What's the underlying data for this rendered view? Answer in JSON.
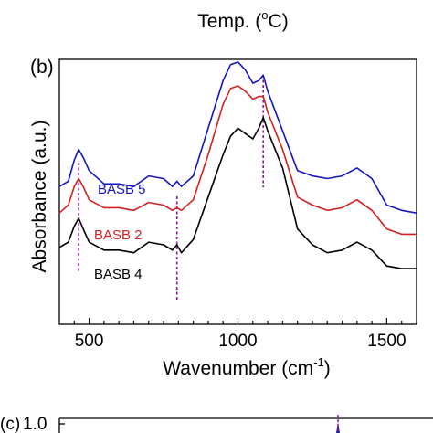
{
  "top_title": {
    "text": "Temp. (",
    "sup": "o",
    "tail": "C)"
  },
  "chart_data": {
    "type": "line",
    "panel_label": "(b)",
    "xlabel": {
      "text": "Wavenumber (cm",
      "sup": "-1",
      "tail": ")"
    },
    "ylabel": "Absorbance (a.u.)",
    "xlim": [
      400,
      1600
    ],
    "xticks": [
      500,
      1000,
      1500
    ],
    "y_ticks_labeled": false,
    "grid": false,
    "legend": "inline labels",
    "dashed_markers": [
      {
        "x": 465,
        "color": "#8b1a9a"
      },
      {
        "x": 795,
        "color": "#8b1a9a"
      },
      {
        "x": 1085,
        "color": "#8b1a9a"
      }
    ],
    "series": [
      {
        "name": "BASB 5",
        "color": "#1515c0",
        "x": [
          400,
          430,
          450,
          465,
          480,
          500,
          550,
          600,
          650,
          700,
          750,
          780,
          795,
          810,
          850,
          900,
          950,
          975,
          1000,
          1025,
          1050,
          1070,
          1085,
          1100,
          1150,
          1200,
          1250,
          1300,
          1350,
          1400,
          1450,
          1500,
          1550,
          1600
        ],
        "y": [
          0.52,
          0.54,
          0.62,
          0.66,
          0.63,
          0.58,
          0.53,
          0.53,
          0.52,
          0.56,
          0.55,
          0.52,
          0.54,
          0.52,
          0.56,
          0.74,
          0.92,
          0.98,
          0.99,
          0.96,
          0.91,
          0.92,
          0.94,
          0.88,
          0.73,
          0.58,
          0.56,
          0.55,
          0.56,
          0.59,
          0.55,
          0.45,
          0.43,
          0.42
        ]
      },
      {
        "name": "BASB 2",
        "color": "#d42020",
        "x": [
          400,
          430,
          450,
          465,
          480,
          500,
          550,
          600,
          650,
          700,
          750,
          780,
          795,
          810,
          850,
          900,
          950,
          975,
          1000,
          1025,
          1050,
          1070,
          1085,
          1100,
          1150,
          1200,
          1250,
          1300,
          1350,
          1400,
          1450,
          1500,
          1550,
          1600
        ],
        "y": [
          0.42,
          0.45,
          0.52,
          0.55,
          0.52,
          0.47,
          0.44,
          0.44,
          0.43,
          0.46,
          0.45,
          0.43,
          0.44,
          0.43,
          0.47,
          0.64,
          0.83,
          0.89,
          0.9,
          0.88,
          0.85,
          0.86,
          0.86,
          0.8,
          0.66,
          0.48,
          0.45,
          0.43,
          0.44,
          0.47,
          0.43,
          0.36,
          0.34,
          0.34
        ]
      },
      {
        "name": "BASB 4",
        "color": "#000000",
        "x": [
          400,
          430,
          450,
          465,
          480,
          500,
          550,
          600,
          650,
          700,
          750,
          780,
          795,
          810,
          850,
          900,
          950,
          975,
          1000,
          1025,
          1050,
          1070,
          1085,
          1100,
          1150,
          1200,
          1250,
          1300,
          1350,
          1400,
          1450,
          1500,
          1550,
          1600
        ],
        "y": [
          0.29,
          0.31,
          0.37,
          0.4,
          0.36,
          0.31,
          0.28,
          0.28,
          0.27,
          0.31,
          0.3,
          0.28,
          0.3,
          0.27,
          0.32,
          0.48,
          0.64,
          0.71,
          0.74,
          0.72,
          0.7,
          0.74,
          0.78,
          0.73,
          0.59,
          0.36,
          0.3,
          0.27,
          0.28,
          0.31,
          0.28,
          0.22,
          0.21,
          0.21
        ]
      }
    ]
  },
  "next_panel": {
    "label": "(c)",
    "tick": "1.0"
  }
}
